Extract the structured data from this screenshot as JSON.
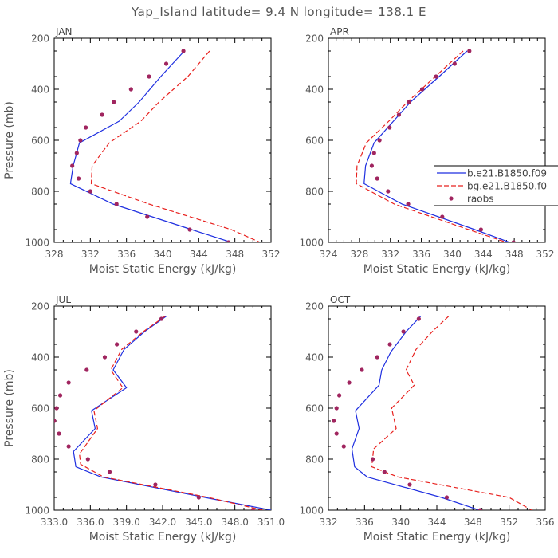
{
  "title": "Yap_Island   latitude= 9.4 N longitude= 138.1 E",
  "colors": {
    "model1": "#1f2fe0",
    "model2": "#e8211e",
    "obs": "#a0255f",
    "axis": "#000000",
    "text": "#555555"
  },
  "legend": {
    "entries": [
      {
        "label": "b.e21.B1850.f09",
        "style": "solid-line",
        "color": "#1f2fe0"
      },
      {
        "label": "bg.e21.B1850.f0",
        "style": "dashed-line",
        "color": "#e8211e"
      },
      {
        "label": "raobs",
        "style": "dot",
        "color": "#a0255f"
      }
    ],
    "position": "right of APR panel"
  },
  "chart_data": [
    {
      "type": "line",
      "panel": "JAN",
      "xlabel": "Moist Static Energy (kJ/kg)",
      "ylabel": "Pressure (mb)",
      "xlim": [
        328,
        352
      ],
      "xticks": [
        328,
        332,
        336,
        340,
        344,
        348,
        352
      ],
      "xtick_labels": [
        "328",
        "332",
        "336",
        "340",
        "344",
        "348",
        "352"
      ],
      "ylim": [
        200,
        1000
      ],
      "yticks": [
        200,
        400,
        600,
        800,
        1000
      ],
      "ytick_labels": [
        "200",
        "400",
        "600",
        "800",
        "1000"
      ],
      "series": [
        {
          "name": "b.e21.B1850.f09",
          "kind": "solid",
          "pressure": [
            250,
            350,
            450,
            525,
            610,
            700,
            770,
            850,
            950,
            1000
          ],
          "values": [
            342.4,
            339.8,
            337.4,
            335.2,
            330.8,
            330.1,
            329.8,
            334.5,
            343.2,
            347.6
          ]
        },
        {
          "name": "bg.e21.B1850.f0",
          "kind": "dashed",
          "pressure": [
            250,
            350,
            450,
            525,
            610,
            700,
            770,
            850,
            950,
            1000
          ],
          "values": [
            345.2,
            342.8,
            339.6,
            337.6,
            334.1,
            332.2,
            332.1,
            338.5,
            347.6,
            350.8
          ]
        },
        {
          "name": "raobs",
          "kind": "dots",
          "pressure": [
            250,
            300,
            350,
            400,
            450,
            500,
            550,
            600,
            650,
            700,
            750,
            800,
            850,
            900,
            950,
            1000
          ],
          "values": [
            342.3,
            340.4,
            338.5,
            336.5,
            334.6,
            333.3,
            331.5,
            330.9,
            330.5,
            330.0,
            330.7,
            332.0,
            334.9,
            338.3,
            343.0,
            347.3
          ]
        }
      ]
    },
    {
      "type": "line",
      "panel": "APR",
      "xlabel": "Moist Static Energy (kJ/kg)",
      "ylabel": "",
      "xlim": [
        324,
        352
      ],
      "xticks": [
        324,
        328,
        332,
        336,
        340,
        344,
        348,
        352
      ],
      "xtick_labels": [
        "324",
        "328",
        "332",
        "336",
        "340",
        "344",
        "348",
        "352"
      ],
      "ylim": [
        200,
        1000
      ],
      "yticks": [
        200,
        400,
        600,
        800,
        1000
      ],
      "ytick_labels": [
        "200",
        "400",
        "600",
        "800",
        "1000"
      ],
      "series": [
        {
          "name": "b.e21.B1850.f09",
          "kind": "solid",
          "pressure": [
            250,
            350,
            450,
            525,
            610,
            700,
            770,
            850,
            950,
            1000
          ],
          "values": [
            341.9,
            338.3,
            334.6,
            332.4,
            329.9,
            328.8,
            328.6,
            333.5,
            342.9,
            347.4
          ]
        },
        {
          "name": "bg.e21.B1850.f0",
          "kind": "dashed",
          "pressure": [
            250,
            350,
            450,
            525,
            610,
            700,
            770,
            850,
            950,
            1000
          ],
          "values": [
            341.4,
            337.8,
            334.2,
            331.8,
            328.9,
            327.7,
            327.6,
            332.5,
            342.1,
            347.0
          ]
        },
        {
          "name": "raobs",
          "kind": "dots",
          "pressure": [
            250,
            300,
            350,
            400,
            450,
            500,
            550,
            600,
            650,
            700,
            750,
            800,
            850,
            900,
            950,
            1000
          ],
          "values": [
            342.2,
            340.3,
            337.9,
            336.1,
            334.4,
            333.1,
            331.9,
            330.6,
            329.9,
            329.6,
            330.3,
            331.7,
            334.3,
            338.7,
            343.7,
            347.9
          ]
        }
      ]
    },
    {
      "type": "line",
      "panel": "JUL",
      "xlabel": "Moist Static Energy (kJ/kg)",
      "ylabel": "Pressure (mb)",
      "xlim": [
        333,
        351
      ],
      "xticks": [
        333,
        336,
        339,
        342,
        345,
        348,
        351
      ],
      "xtick_labels": [
        "333.0",
        "336.0",
        "339.0",
        "342.0",
        "345.0",
        "348.0",
        "351.0"
      ],
      "ylim": [
        200,
        1000
      ],
      "yticks": [
        200,
        400,
        600,
        800,
        1000
      ],
      "ytick_labels": [
        "200",
        "400",
        "600",
        "800",
        "1000"
      ],
      "series": [
        {
          "name": "b.e21.B1850.f09",
          "kind": "solid",
          "pressure": [
            240,
            300,
            370,
            450,
            520,
            610,
            680,
            770,
            830,
            870,
            950,
            1000
          ],
          "values": [
            342.3,
            340.5,
            338.8,
            337.9,
            339.0,
            336.1,
            336.4,
            334.6,
            334.8,
            336.9,
            345.5,
            351.0
          ]
        },
        {
          "name": "bg.e21.B1850.f0",
          "kind": "dashed",
          "pressure": [
            240,
            300,
            370,
            450,
            520,
            610,
            680,
            780,
            820,
            870,
            950,
            1000
          ],
          "values": [
            342.2,
            340.4,
            338.6,
            337.7,
            338.7,
            336.3,
            336.6,
            335.1,
            335.2,
            337.1,
            345.8,
            350.3
          ]
        },
        {
          "name": "raobs",
          "kind": "dots",
          "pressure": [
            250,
            300,
            350,
            400,
            450,
            500,
            550,
            600,
            650,
            700,
            750,
            800,
            850,
            900,
            950,
            1000
          ],
          "values": [
            341.9,
            339.8,
            338.2,
            337.2,
            335.7,
            334.2,
            333.5,
            333.2,
            333.0,
            333.4,
            334.2,
            335.8,
            337.6,
            341.4,
            345.0,
            349.5
          ]
        }
      ]
    },
    {
      "type": "line",
      "panel": "OCT",
      "xlabel": "Moist Static Energy (kJ/kg)",
      "ylabel": "",
      "xlim": [
        332,
        356
      ],
      "xticks": [
        332,
        336,
        340,
        344,
        348,
        352,
        356
      ],
      "xtick_labels": [
        "332",
        "336",
        "340",
        "344",
        "348",
        "352",
        "356"
      ],
      "ylim": [
        200,
        1000
      ],
      "yticks": [
        200,
        400,
        600,
        800,
        1000
      ],
      "ytick_labels": [
        "200",
        "400",
        "600",
        "800",
        "1000"
      ],
      "series": [
        {
          "name": "b.e21.B1850.f09",
          "kind": "solid",
          "pressure": [
            240,
            300,
            380,
            450,
            510,
            610,
            680,
            760,
            830,
            870,
            950,
            1000
          ],
          "values": [
            342.2,
            340.6,
            338.9,
            337.9,
            337.6,
            335.0,
            335.4,
            334.6,
            334.9,
            336.3,
            344.5,
            348.7
          ]
        },
        {
          "name": "bg.e21.B1850.f0",
          "kind": "dashed",
          "pressure": [
            240,
            300,
            370,
            450,
            510,
            600,
            680,
            760,
            830,
            870,
            950,
            1000
          ],
          "values": [
            345.3,
            343.5,
            341.7,
            340.6,
            341.5,
            339.0,
            339.5,
            337.0,
            336.8,
            339.7,
            352.0,
            354.5
          ]
        },
        {
          "name": "raobs",
          "kind": "dots",
          "pressure": [
            250,
            300,
            350,
            400,
            450,
            500,
            550,
            600,
            650,
            700,
            750,
            800,
            850,
            900,
            950,
            1000
          ],
          "values": [
            342.0,
            340.3,
            338.8,
            337.4,
            335.7,
            334.3,
            333.2,
            332.9,
            332.6,
            332.9,
            333.7,
            336.9,
            338.2,
            341.0,
            345.1,
            348.8
          ]
        }
      ]
    }
  ]
}
